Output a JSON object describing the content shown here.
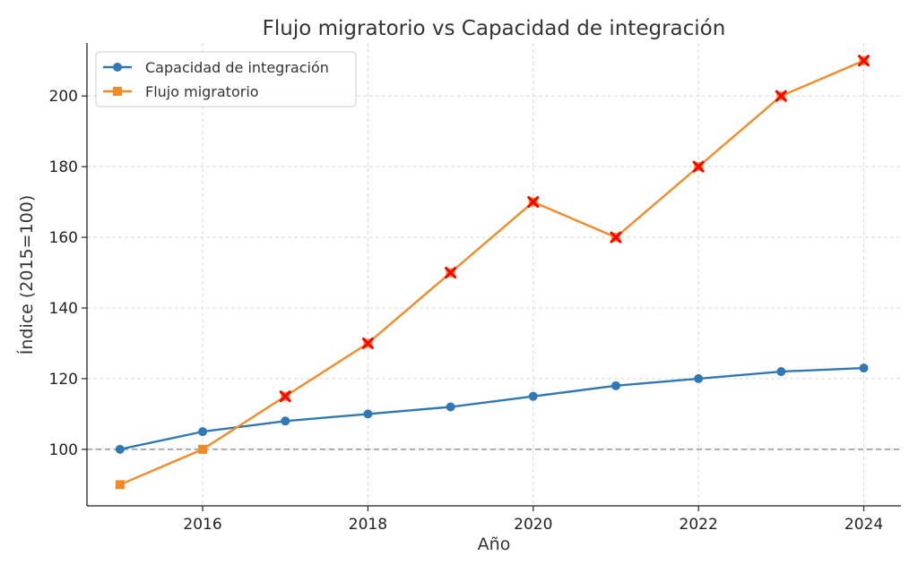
{
  "chart_data": {
    "type": "line",
    "title": "Flujo migratorio vs Capacidad de integración",
    "xlabel": "Año",
    "ylabel": "Índice (2015=100)",
    "x": [
      2015,
      2016,
      2017,
      2018,
      2019,
      2020,
      2021,
      2022,
      2023,
      2024
    ],
    "xlim": [
      2014.6,
      2024.45
    ],
    "ylim": [
      84,
      215
    ],
    "x_ticks": [
      2016,
      2018,
      2020,
      2022,
      2024
    ],
    "y_ticks": [
      100,
      120,
      140,
      160,
      180,
      200
    ],
    "grid": true,
    "legend_position": "top-left",
    "reference_line": {
      "y": 100,
      "style": "dashed",
      "color": "#808080"
    },
    "series": [
      {
        "name": "Capacidad de integración",
        "color": "#2f78b5",
        "marker": "circle",
        "values": [
          100,
          105,
          108,
          110,
          112,
          115,
          118,
          120,
          122,
          123
        ]
      },
      {
        "name": "Flujo migratorio",
        "color": "#f58a24",
        "marker": "square",
        "values": [
          90,
          100,
          115,
          130,
          150,
          170,
          160,
          180,
          200,
          210
        ]
      }
    ],
    "highlight": {
      "series": "Flujo migratorio",
      "marker": "x",
      "color": "#ff0000",
      "x": [
        2017,
        2018,
        2019,
        2020,
        2021,
        2022,
        2023,
        2024
      ]
    }
  }
}
